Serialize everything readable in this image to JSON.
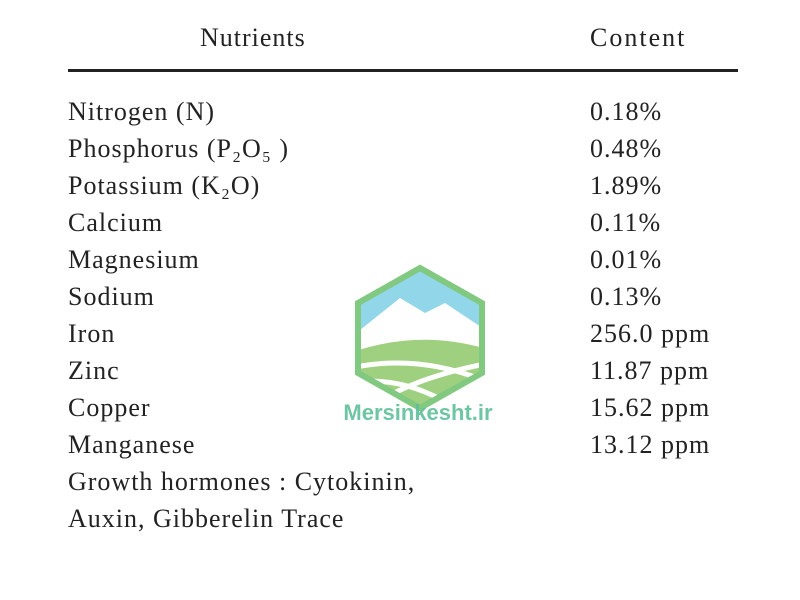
{
  "table": {
    "header": [
      "Nutrients",
      "Content"
    ],
    "rows": [
      [
        "Nitrogen (N)",
        "0.18%"
      ],
      [
        "Phosphorus (P₂O₅ )",
        "0.48%"
      ],
      [
        "Potassium (K₂O)",
        "1.89%"
      ],
      [
        "Calcium",
        "0.11%"
      ],
      [
        "Magnesium",
        "0.01%"
      ],
      [
        "Sodium",
        "0.13%"
      ],
      [
        "Iron",
        "256.0 ppm"
      ],
      [
        "Zinc",
        "11.87 ppm"
      ],
      [
        "Copper",
        "15.62 ppm"
      ],
      [
        "Manganese",
        "13.12 ppm"
      ]
    ],
    "note": [
      "Growth hormones : Cytokinin,",
      "Auxin, Gibberelin Trace"
    ]
  },
  "watermark": "Mersinkesht.ir"
}
